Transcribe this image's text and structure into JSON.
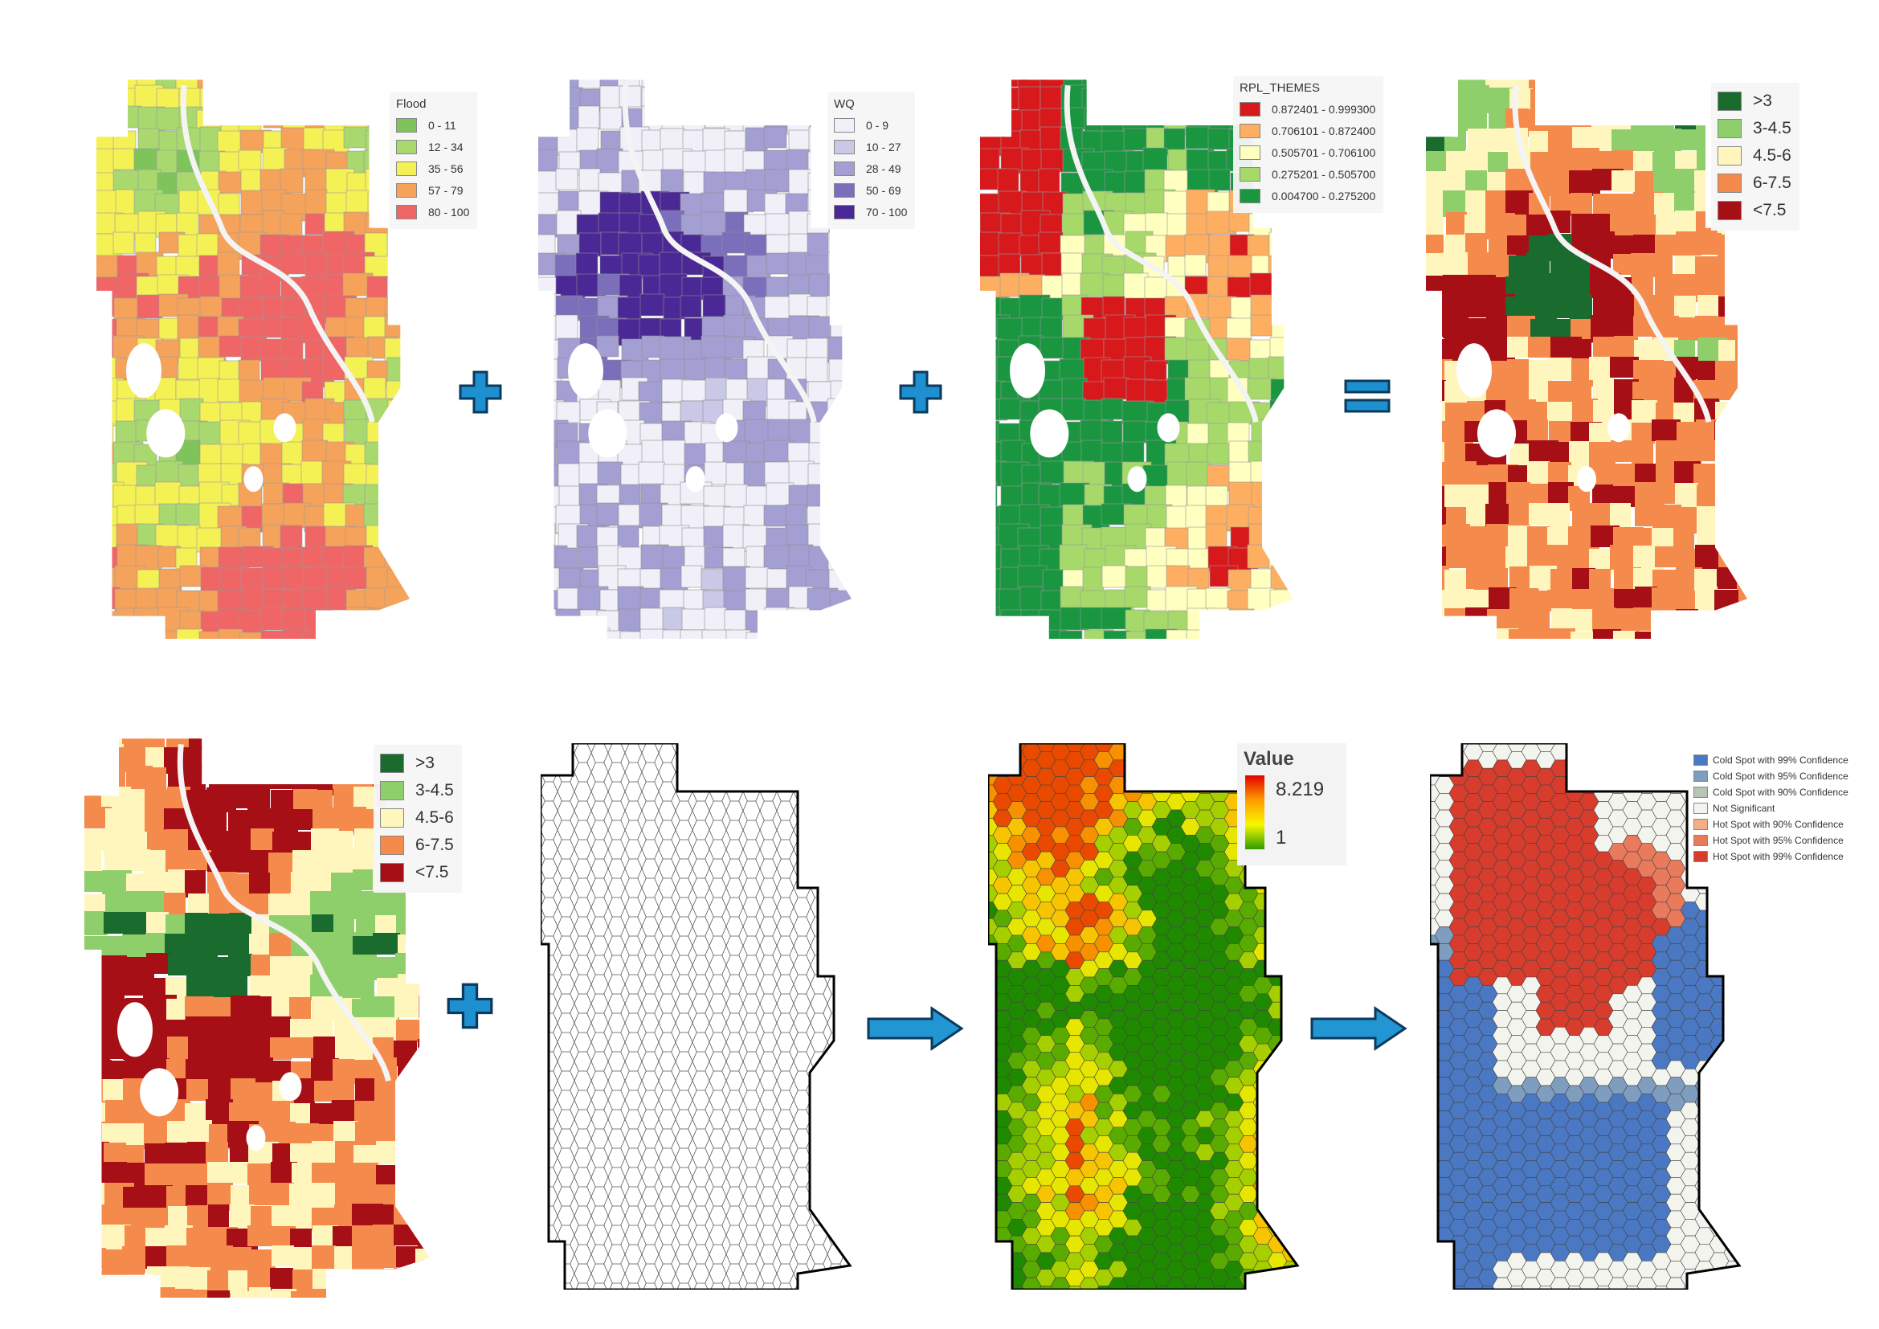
{
  "colors": {
    "flood": [
      "#7ec45a",
      "#a8d86e",
      "#f4f155",
      "#f5a25a",
      "#f06565"
    ],
    "wq": [
      "#f1f0f8",
      "#c9c8e6",
      "#a49fd3",
      "#7b6fbc",
      "#4a2996"
    ],
    "rpl": [
      "#d7191c",
      "#fdae61",
      "#ffffbf",
      "#a6d96a",
      "#1a9641"
    ],
    "composite": [
      "#1a6b2e",
      "#8fcf6b",
      "#fff6bd",
      "#f48a4c",
      "#a50f15"
    ],
    "hotspot": [
      "#4a78c2",
      "#7e9dbf",
      "#b9c5b3",
      "#f4f4ef",
      "#f4ad85",
      "#ea7a5c",
      "#d73c2c"
    ],
    "arrow": "#2196d3",
    "plus": "#1e90d0"
  },
  "icons": {
    "plus": "plus-icon",
    "equals": "equals-icon",
    "arrow": "arrow-right-icon"
  },
  "panels": {
    "flood": {
      "legend_title": "Flood",
      "items": [
        "0 - 11",
        "12 - 34",
        "35 - 56",
        "57 - 79",
        "80 - 100"
      ]
    },
    "wq": {
      "legend_title": "WQ",
      "items": [
        "0 - 9",
        "10 - 27",
        "28 - 49",
        "50 - 69",
        "70 - 100"
      ]
    },
    "rpl": {
      "legend_title": "RPL_THEMES",
      "items": [
        "0.872401 - 0.999300",
        "0.706101 - 0.872400",
        "0.505701 - 0.706100",
        "0.275201 - 0.505700",
        "0.004700 - 0.275200"
      ]
    },
    "composite_top": {
      "items": [
        ">3",
        "3-4.5",
        "4.5-6",
        "6-7.5",
        "<7.5"
      ]
    },
    "composite_bottom": {
      "items": [
        ">3",
        "3-4.5",
        "4.5-6",
        "6-7.5",
        "<7.5"
      ]
    },
    "value": {
      "title": "Value",
      "max": "8.219",
      "min": "1"
    },
    "hotspot": {
      "items": [
        "Cold Spot with 99% Confidence",
        "Cold Spot with 95% Confidence",
        "Cold Spot with 90% Confidence",
        "Not Significant",
        "Hot Spot with 90% Confidence",
        "Hot Spot with 95% Confidence",
        "Hot Spot with 99% Confidence"
      ]
    }
  }
}
